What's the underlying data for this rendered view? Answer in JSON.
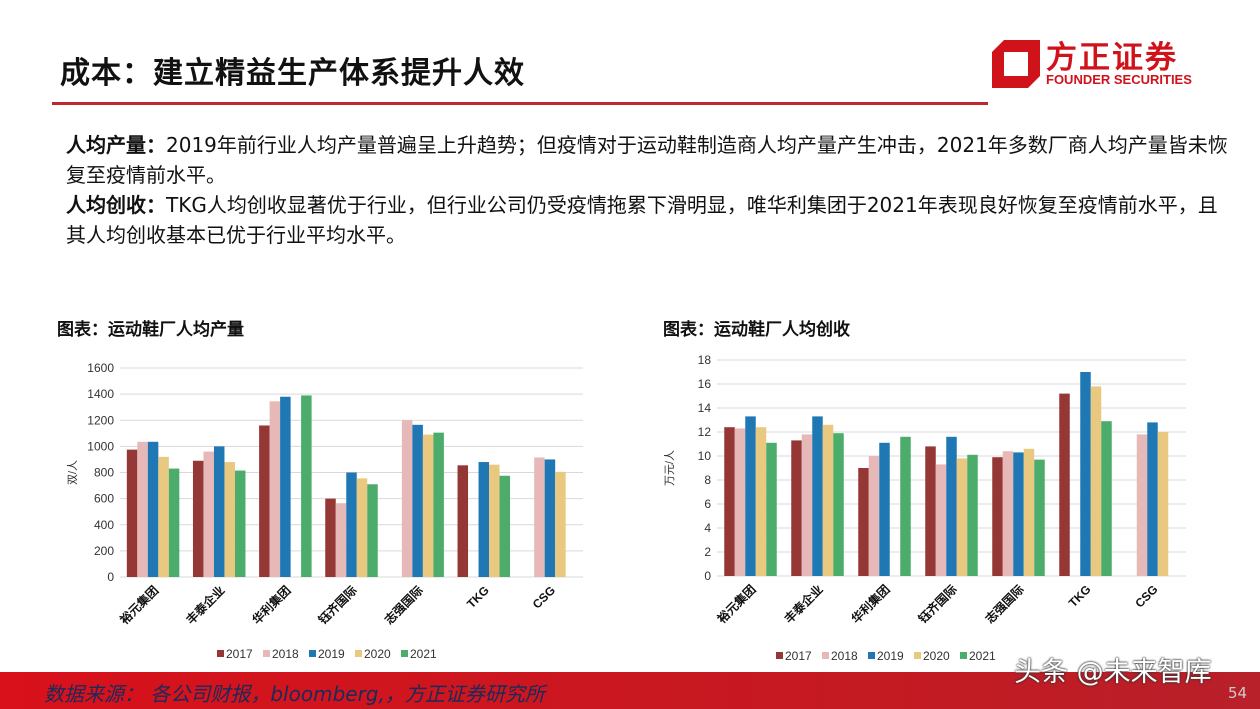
{
  "header": {
    "title": "成本：建立精益生产体系提升人效",
    "logo_cn": "方正证券",
    "logo_en": "FOUNDER SECURITIES"
  },
  "body": {
    "p1_label": "人均产量：",
    "p1_text": "2019年前行业人均产量普遍呈上升趋势；但疫情对于运动鞋制造商人均产量产生冲击，2021年多数厂商人均产量皆未恢复至疫情前水平。",
    "p2_label": "人均创收：",
    "p2_text": "TKG人均创收显著优于行业，但行业公司仍受疫情拖累下滑明显，唯华利集团于2021年表现良好恢复至疫情前水平，且其人均创收基本已优于行业平均水平。"
  },
  "footer": {
    "source": "数据来源： 各公司财报，bloomberg,，方正证券研究所",
    "watermark": "头条 @未来智库",
    "page": "54"
  },
  "colors": {
    "2017": "#953735",
    "2018": "#e6b9b8",
    "2019": "#1f78b4",
    "2020": "#e9c97f",
    "2021": "#4bac6b",
    "brand": "#d0121b"
  },
  "chart_data": [
    {
      "type": "bar",
      "title": "图表：运动鞋厂人均产量",
      "ylabel": "双/人",
      "ylim": [
        0,
        1600
      ],
      "yticks": [
        0,
        200,
        400,
        600,
        800,
        1000,
        1200,
        1400,
        1600
      ],
      "grid": true,
      "legend": "bottom",
      "categories": [
        "裕元集团",
        "丰泰企业",
        "华利集团",
        "钰齐国际",
        "志强国际",
        "TKG",
        "CSG"
      ],
      "series": [
        {
          "name": "2017",
          "values": [
            975,
            890,
            1160,
            600,
            null,
            855,
            null
          ]
        },
        {
          "name": "2018",
          "values": [
            1035,
            960,
            1345,
            565,
            1200,
            null,
            915
          ]
        },
        {
          "name": "2019",
          "values": [
            1035,
            1000,
            1380,
            800,
            1165,
            880,
            900
          ]
        },
        {
          "name": "2020",
          "values": [
            920,
            880,
            null,
            755,
            1090,
            860,
            805
          ]
        },
        {
          "name": "2021",
          "values": [
            830,
            815,
            1390,
            710,
            1105,
            775,
            null
          ]
        }
      ]
    },
    {
      "type": "bar",
      "title": "图表：运动鞋厂人均创收",
      "ylabel": "万元/人",
      "ylim": [
        0,
        18
      ],
      "yticks": [
        0,
        2,
        4,
        6,
        8,
        10,
        12,
        14,
        16,
        18
      ],
      "grid": true,
      "legend": "bottom",
      "categories": [
        "裕元集团",
        "丰泰企业",
        "华利集团",
        "钰齐国际",
        "志强国际",
        "TKG",
        "CSG"
      ],
      "series": [
        {
          "name": "2017",
          "values": [
            12.4,
            11.3,
            9.0,
            10.8,
            9.9,
            15.2,
            null
          ]
        },
        {
          "name": "2018",
          "values": [
            12.3,
            11.8,
            10.0,
            9.3,
            10.4,
            null,
            11.8
          ]
        },
        {
          "name": "2019",
          "values": [
            13.3,
            13.3,
            11.1,
            11.6,
            10.3,
            17.0,
            12.8
          ]
        },
        {
          "name": "2020",
          "values": [
            12.4,
            12.6,
            null,
            9.8,
            10.6,
            15.8,
            12.0
          ]
        },
        {
          "name": "2021",
          "values": [
            11.1,
            11.9,
            11.6,
            10.1,
            9.7,
            12.9,
            null
          ]
        }
      ]
    }
  ]
}
